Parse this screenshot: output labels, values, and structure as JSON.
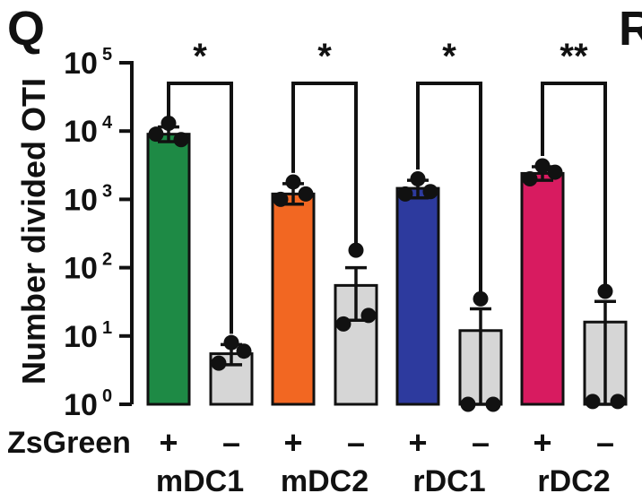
{
  "panel_label": "Q",
  "next_panel_label": "R",
  "chart_data": {
    "type": "bar",
    "yscale": "log",
    "ylabel": "Number divided OTI",
    "ylim": [
      1,
      100000
    ],
    "yticks": [
      {
        "base": "10",
        "exp": "0",
        "value": 1
      },
      {
        "base": "10",
        "exp": "1",
        "value": 10
      },
      {
        "base": "10",
        "exp": "2",
        "value": 100
      },
      {
        "base": "10",
        "exp": "3",
        "value": 1000
      },
      {
        "base": "10",
        "exp": "4",
        "value": 10000
      },
      {
        "base": "10",
        "exp": "5",
        "value": 100000
      }
    ],
    "row_label": "ZsGreen",
    "groups": [
      "mDC1",
      "mDC2",
      "rDC1",
      "rDC2"
    ],
    "bars": [
      {
        "group": "mDC1",
        "zsgreen": "+",
        "color": "#1e8a45",
        "value": 9000,
        "error_high": 11500,
        "error_low": 7000,
        "points": [
          13000,
          9000,
          7500
        ]
      },
      {
        "group": "mDC1",
        "zsgreen": "–",
        "color": "#d6d6d6",
        "value": 5.5,
        "error_high": 7.5,
        "error_low": 3.8,
        "points": [
          8,
          4,
          6
        ]
      },
      {
        "group": "mDC2",
        "zsgreen": "+",
        "color": "#f26722",
        "value": 1200,
        "error_high": 1700,
        "error_low": 850,
        "points": [
          1800,
          1000,
          1200
        ]
      },
      {
        "group": "mDC2",
        "zsgreen": "–",
        "color": "#d6d6d6",
        "value": 55,
        "error_high": 100,
        "error_low": 17,
        "points": [
          180,
          15,
          20
        ]
      },
      {
        "group": "rDC1",
        "zsgreen": "+",
        "color": "#2d3a9e",
        "value": 1450,
        "error_high": 1900,
        "error_low": 1050,
        "points": [
          2000,
          1200,
          1300
        ]
      },
      {
        "group": "rDC1",
        "zsgreen": "–",
        "color": "#d6d6d6",
        "value": 12,
        "error_high": 25,
        "error_low": 1,
        "points": [
          35,
          1,
          1
        ]
      },
      {
        "group": "rDC2",
        "zsgreen": "+",
        "color": "#d81b60",
        "value": 2400,
        "error_high": 3000,
        "error_low": 1900,
        "points": [
          3100,
          2000,
          2500
        ]
      },
      {
        "group": "rDC2",
        "zsgreen": "–",
        "color": "#d6d6d6",
        "value": 16,
        "error_high": 32,
        "error_low": 1,
        "points": [
          45,
          1.1,
          1.1
        ]
      }
    ],
    "significance": [
      {
        "group": "mDC1",
        "label": "*"
      },
      {
        "group": "mDC2",
        "label": "*"
      },
      {
        "group": "rDC1",
        "label": "*"
      },
      {
        "group": "rDC2",
        "label": "**"
      }
    ]
  }
}
